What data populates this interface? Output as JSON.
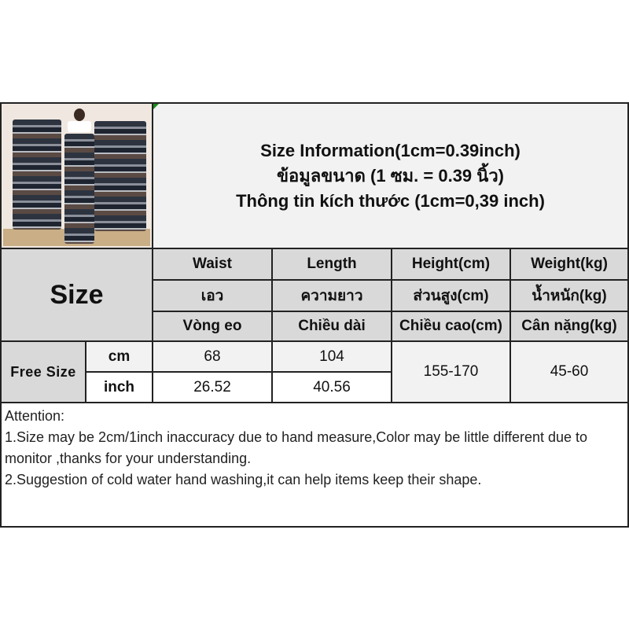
{
  "title": {
    "line1": "Size Information(1cm=0.39inch)",
    "line2": "ข้อมูลขนาด (1 ซม. = 0.39 นิ้ว)",
    "line3": "Thông tin kích thước (1cm=0,39 inch)"
  },
  "table": {
    "size_label": "Size",
    "columns": [
      {
        "en": "Waist",
        "th": "เอว",
        "vi": "Vòng eo"
      },
      {
        "en": "Length",
        "th": "ความยาว",
        "vi": "Chiều dài"
      },
      {
        "en": "Height(cm)",
        "th": "ส่วนสูง(cm)",
        "vi": "Chiều cao(cm)"
      },
      {
        "en": "Weight(kg)",
        "th": "น้ำหนัก(kg)",
        "vi": "Cân nặng(kg)"
      }
    ],
    "row_label": "Free Size",
    "rows": [
      {
        "unit": "cm",
        "waist": "68",
        "length": "104"
      },
      {
        "unit": "inch",
        "waist": "26.52",
        "length": "40.56"
      }
    ],
    "height": "155-170",
    "weight": "45-60"
  },
  "attention": {
    "heading": "Attention:",
    "line1": "1.Size may be 2cm/1inch inaccuracy due to hand measure,Color may be little different due to monitor ,thanks for your understanding.",
    "line2": "2.Suggestion of cold water hand washing,it can help items keep their shape."
  }
}
